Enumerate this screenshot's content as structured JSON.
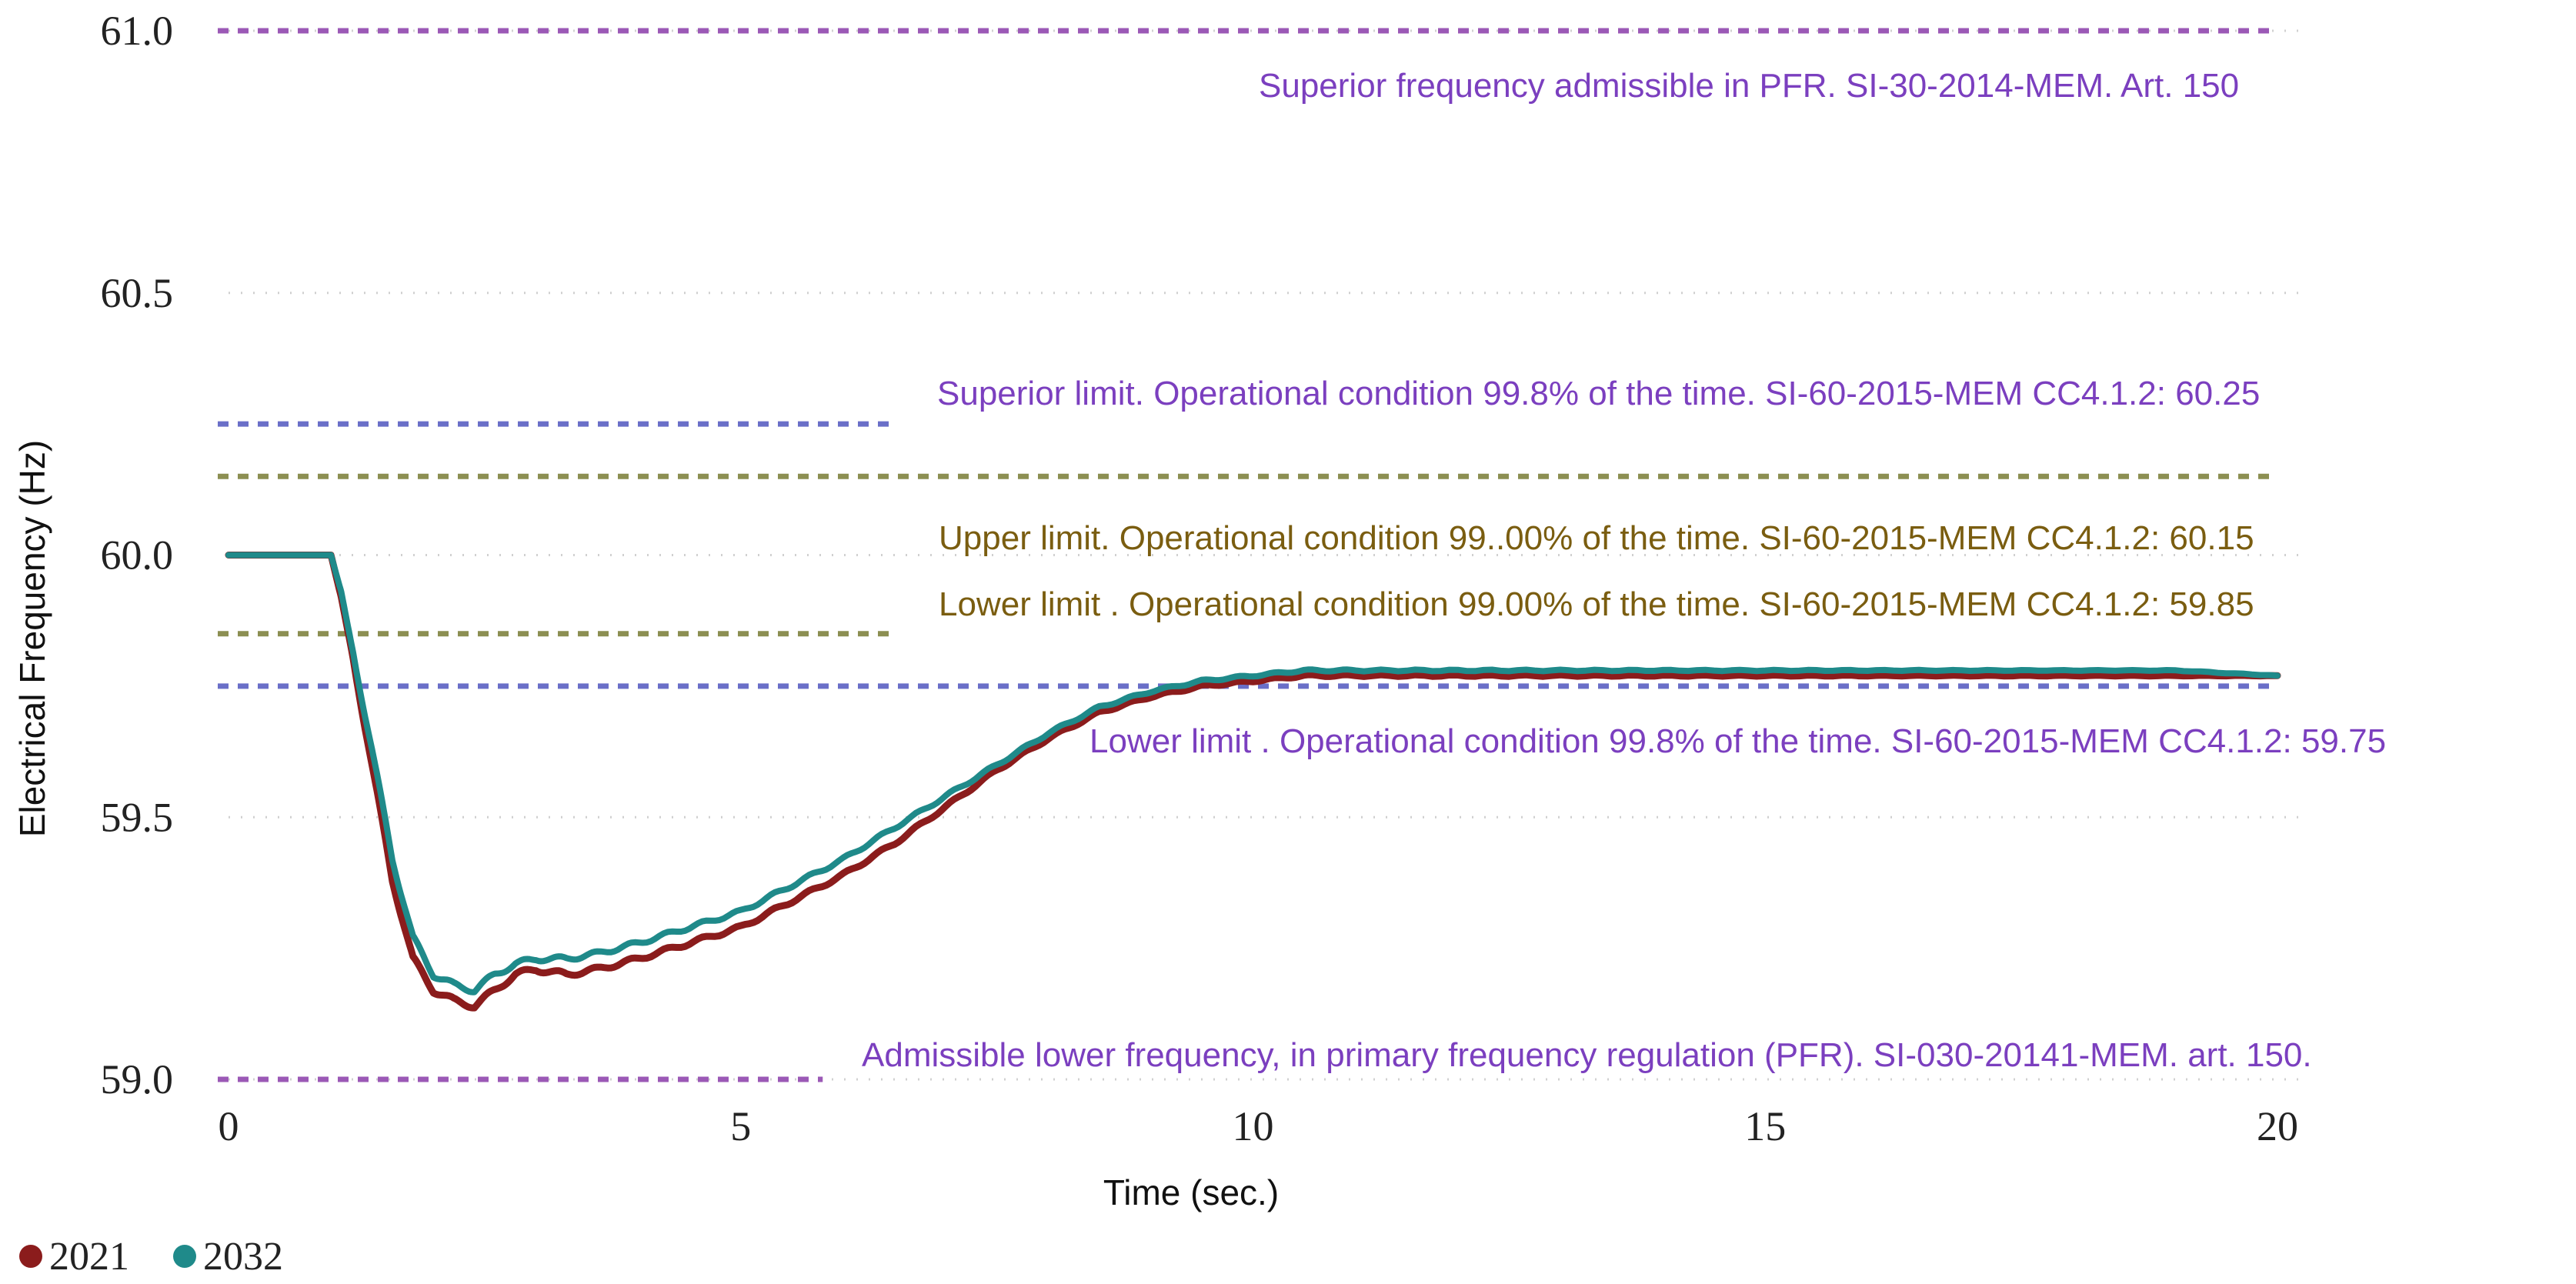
{
  "chart_data": {
    "type": "line",
    "title": "",
    "xlabel": "Time (sec.)",
    "ylabel": "Electrical Frequency (Hz)",
    "xlim": [
      0,
      20
    ],
    "ylim": [
      59.0,
      61.0
    ],
    "xticks": [
      0,
      5,
      10,
      15,
      20
    ],
    "yticks": [
      59.0,
      59.5,
      60.0,
      60.5,
      61.0
    ],
    "x_tick_labels": [
      "0",
      "5",
      "10",
      "15",
      "20"
    ],
    "y_tick_labels": [
      "59.0",
      "59.5",
      "60.0",
      "60.5",
      "61.0"
    ],
    "grid": "horizontal-dotted",
    "legend_placement": "bottom-left",
    "colors": {
      "2021": "#8b1c1c",
      "2032": "#1f8a8a",
      "purple": "#9b59b6",
      "blue": "#6a6fc8",
      "olive": "#8c8f52",
      "annot_purple": "#7b3fbf",
      "annot_olive": "#7a5d10"
    },
    "series": [
      {
        "name": "2021",
        "color": "#8b1c1c",
        "x": [
          0,
          0.5,
          1.0,
          1.1,
          1.2,
          1.4,
          1.6,
          1.8,
          2.0,
          2.2,
          2.4,
          2.6,
          2.8,
          3.0,
          3.3,
          3.6,
          4.0,
          4.5,
          5.0,
          5.5,
          6.0,
          6.5,
          7.0,
          7.5,
          8.0,
          8.5,
          9.0,
          9.5,
          10.0,
          10.5,
          11.0,
          12.0,
          13.0,
          14.0,
          15.0,
          16.0,
          17.0,
          18.0,
          19.0,
          20.0
        ],
        "y": [
          60.0,
          60.0,
          60.0,
          59.92,
          59.82,
          59.6,
          59.38,
          59.23,
          59.17,
          59.15,
          59.14,
          59.17,
          59.2,
          59.21,
          59.2,
          59.21,
          59.23,
          59.26,
          59.29,
          59.34,
          59.39,
          59.45,
          59.52,
          59.59,
          59.65,
          59.7,
          59.73,
          59.75,
          59.76,
          59.77,
          59.77,
          59.77,
          59.77,
          59.77,
          59.77,
          59.77,
          59.77,
          59.77,
          59.77,
          59.77
        ]
      },
      {
        "name": "2032",
        "color": "#1f8a8a",
        "x": [
          0,
          0.5,
          1.0,
          1.1,
          1.2,
          1.4,
          1.6,
          1.8,
          2.0,
          2.2,
          2.4,
          2.6,
          2.8,
          3.0,
          3.3,
          3.6,
          4.0,
          4.5,
          5.0,
          5.5,
          6.0,
          6.5,
          7.0,
          7.5,
          8.0,
          8.5,
          9.0,
          9.5,
          10.0,
          10.5,
          11.0,
          12.0,
          13.0,
          14.0,
          15.0,
          16.0,
          17.0,
          18.0,
          19.0,
          20.0
        ],
        "y": [
          60.0,
          60.0,
          60.0,
          59.93,
          59.83,
          59.63,
          59.42,
          59.27,
          59.2,
          59.18,
          59.17,
          59.2,
          59.22,
          59.23,
          59.23,
          59.24,
          59.26,
          59.29,
          59.32,
          59.37,
          59.42,
          59.48,
          59.54,
          59.6,
          59.66,
          59.71,
          59.74,
          59.76,
          59.77,
          59.78,
          59.78,
          59.78,
          59.78,
          59.78,
          59.78,
          59.78,
          59.78,
          59.78,
          59.78,
          59.77
        ]
      }
    ],
    "reference_lines": [
      {
        "y": 61.0,
        "x_start": 0,
        "x_end": 20,
        "color": "#9b59b6",
        "label": "Superior frequency admissible in PFR. SI-30-2014-MEM. Art. 150",
        "label_color": "#7b3fbf"
      },
      {
        "y": 60.25,
        "x_start": 0,
        "x_end": 6.5,
        "color": "#6a6fc8",
        "label": "Superior limit. Operational condition 99.8% of the time. SI-60-2015-MEM CC4.1.2: 60.25",
        "label_color": "#7b3fbf"
      },
      {
        "y": 60.15,
        "x_start": 0,
        "x_end": 20,
        "color": "#8c8f52",
        "label": "Upper limit. Operational condition 99..00% of the time. SI-60-2015-MEM CC4.1.2: 60.15",
        "label_color": "#7a5d10"
      },
      {
        "y": 59.85,
        "x_start": 0,
        "x_end": 6.5,
        "color": "#8c8f52",
        "label": "Lower limit . Operational condition 99.00% of the time. SI-60-2015-MEM CC4.1.2: 59.85",
        "label_color": "#7a5d10"
      },
      {
        "y": 59.75,
        "x_start": 0,
        "x_end": 20,
        "color": "#6a6fc8",
        "label": "Lower limit . Operational condition 99.8% of the time. SI-60-2015-MEM CC4.1.2: 59.75",
        "label_color": "#7b3fbf"
      },
      {
        "y": 59.0,
        "x_start": 0,
        "x_end": 5.8,
        "color": "#9b59b6",
        "label": "Admissible lower frequency, in primary frequency regulation (PFR). SI-030-20141-MEM. art. 150.",
        "label_color": "#7b3fbf"
      }
    ],
    "legend": [
      {
        "name": "2021",
        "color": "#8b1c1c"
      },
      {
        "name": "2032",
        "color": "#1f8a8a"
      }
    ]
  }
}
